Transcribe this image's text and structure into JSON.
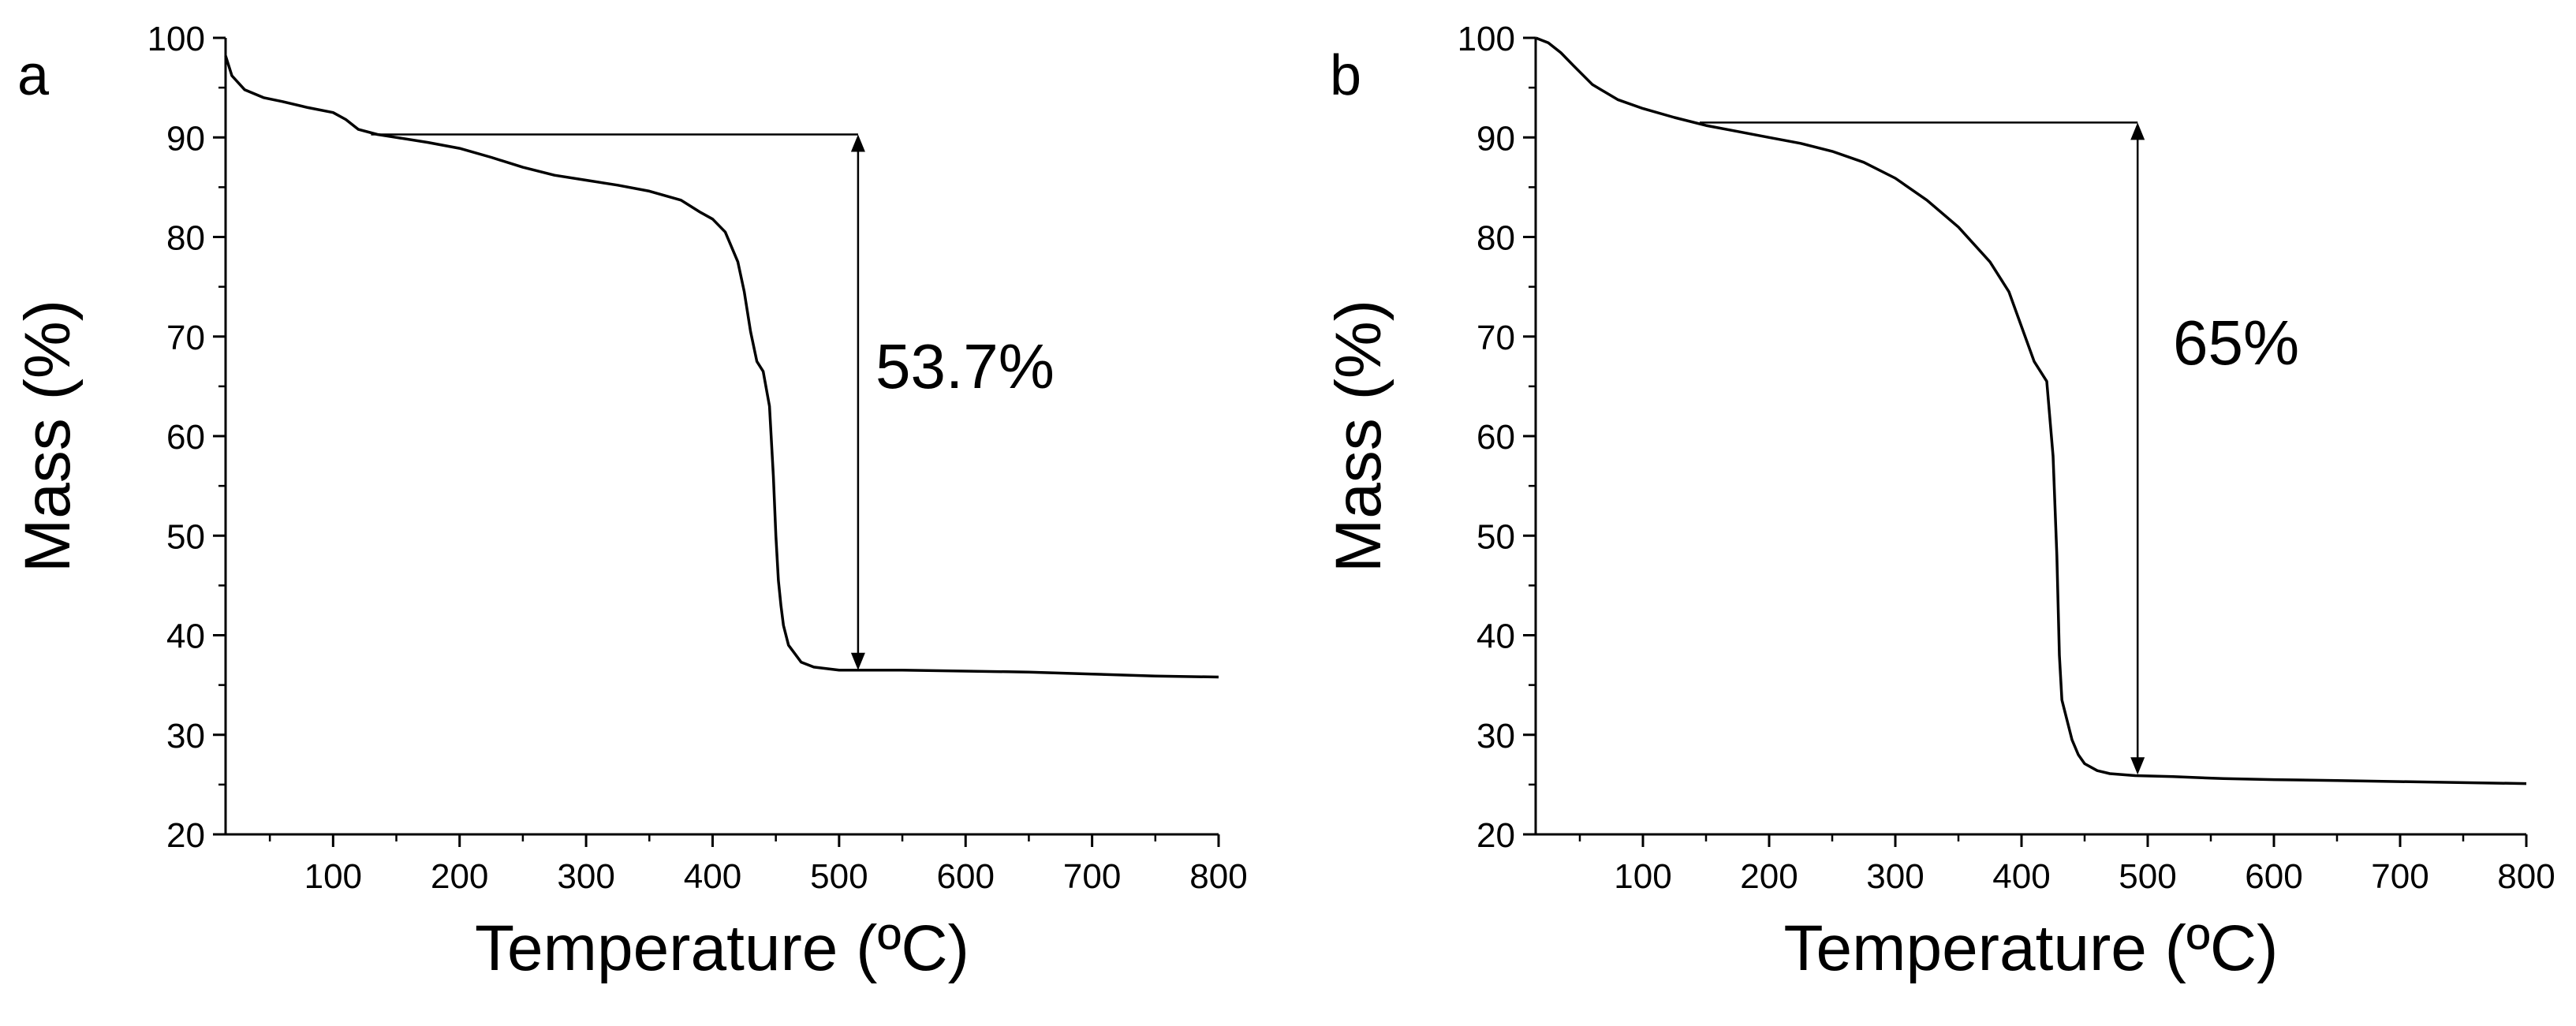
{
  "chart_data": [
    {
      "type": "line",
      "panel_label": "a",
      "xlabel": "Temperature (ºC)",
      "ylabel": "Mass (%)",
      "xlim": [
        15,
        800
      ],
      "ylim": [
        20,
        100
      ],
      "xticks": [
        100,
        200,
        300,
        400,
        500,
        600,
        700,
        800
      ],
      "yticks": [
        20,
        30,
        40,
        50,
        60,
        70,
        80,
        90,
        100
      ],
      "grid": false,
      "series": [
        {
          "x": [
            15,
            20,
            30,
            45,
            60,
            80,
            100,
            110,
            120,
            135,
            150,
            175,
            200,
            225,
            250,
            275,
            300,
            325,
            350,
            375,
            390,
            400,
            410,
            420,
            425,
            430,
            435,
            440,
            445,
            448,
            450,
            452,
            454,
            456,
            460,
            470,
            480,
            500,
            550,
            600,
            650,
            700,
            750,
            800
          ],
          "y": [
            98.2,
            96.2,
            94.8,
            94.0,
            93.6,
            93.0,
            92.5,
            91.8,
            90.8,
            90.3,
            90.0,
            89.5,
            88.9,
            88.0,
            87.0,
            86.2,
            85.7,
            85.2,
            84.6,
            83.7,
            82.5,
            81.8,
            80.5,
            77.5,
            74.5,
            70.5,
            67.5,
            66.5,
            63.0,
            56.0,
            50.0,
            45.5,
            43.0,
            41.0,
            39.0,
            37.3,
            36.8,
            36.5,
            36.5,
            36.4,
            36.3,
            36.1,
            35.9,
            35.8
          ]
        }
      ],
      "annotation": {
        "text": "53.7%",
        "x": 515,
        "y_top": 90.3,
        "y_bottom": 36.5,
        "h_line_x_start": 130
      }
    },
    {
      "type": "line",
      "panel_label": "b",
      "xlabel": "Temperature (ºC)",
      "ylabel": "Mass (%)",
      "xlim": [
        15,
        800
      ],
      "ylim": [
        20,
        100
      ],
      "xticks": [
        100,
        200,
        300,
        400,
        500,
        600,
        700,
        800
      ],
      "yticks": [
        20,
        30,
        40,
        50,
        60,
        70,
        80,
        90,
        100
      ],
      "grid": false,
      "series": [
        {
          "x": [
            15,
            25,
            35,
            45,
            60,
            80,
            100,
            125,
            150,
            175,
            200,
            225,
            250,
            275,
            300,
            325,
            350,
            375,
            390,
            400,
            410,
            420,
            425,
            428,
            430,
            432,
            434,
            436,
            440,
            445,
            450,
            460,
            470,
            490,
            520,
            560,
            600,
            650,
            700,
            750,
            800
          ],
          "y": [
            100,
            99.5,
            98.5,
            97.2,
            95.3,
            93.8,
            92.9,
            92.0,
            91.2,
            90.6,
            90.0,
            89.4,
            88.6,
            87.5,
            85.9,
            83.7,
            81.0,
            77.5,
            74.5,
            71.0,
            67.5,
            65.5,
            58.0,
            48.0,
            38.0,
            33.5,
            32.5,
            31.5,
            29.5,
            28.0,
            27.1,
            26.4,
            26.1,
            25.9,
            25.8,
            25.6,
            25.5,
            25.4,
            25.3,
            25.2,
            25.1
          ]
        }
      ],
      "annotation": {
        "text": "65%",
        "x": 492,
        "y_top": 91.5,
        "y_bottom": 26.0,
        "h_line_x_start": 145
      }
    }
  ]
}
